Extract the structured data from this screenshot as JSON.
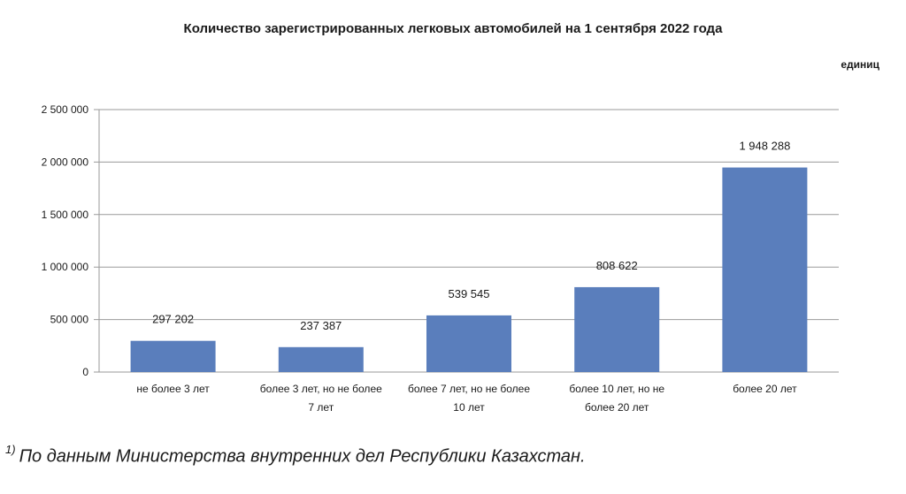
{
  "unit": "единиц",
  "footnote": {
    "marker": "1)",
    "text": "По данным Министерства внутренних дел Республики Казахстан."
  },
  "colors": {
    "bar": "#5a7ebc",
    "grid": "#9a9a9a"
  },
  "chart_data": {
    "type": "bar",
    "title": "Количество зарегистрированных легковых автомобилей на 1 сентября 2022 года",
    "xlabel": "",
    "ylabel": "",
    "ylim": [
      0,
      2500000
    ],
    "grid": true,
    "categories": [
      [
        "не более 3 лет"
      ],
      [
        "более 3 лет, но не более",
        "7 лет"
      ],
      [
        "более 7 лет, но не более",
        "10 лет"
      ],
      [
        "более 10 лет, но не",
        "более 20 лет"
      ],
      [
        "более 20 лет"
      ]
    ],
    "values": [
      297202,
      237387,
      539545,
      808622,
      1948288
    ],
    "value_labels": [
      "297 202",
      "237 387",
      "539 545",
      "808 622",
      "1 948 288"
    ],
    "y_ticks": [
      0,
      500000,
      1000000,
      1500000,
      2000000,
      2500000
    ],
    "y_tick_labels": [
      "0",
      "500 000",
      "1 000 000",
      "1 500 000",
      "2 000 000",
      "2 500 000"
    ]
  }
}
